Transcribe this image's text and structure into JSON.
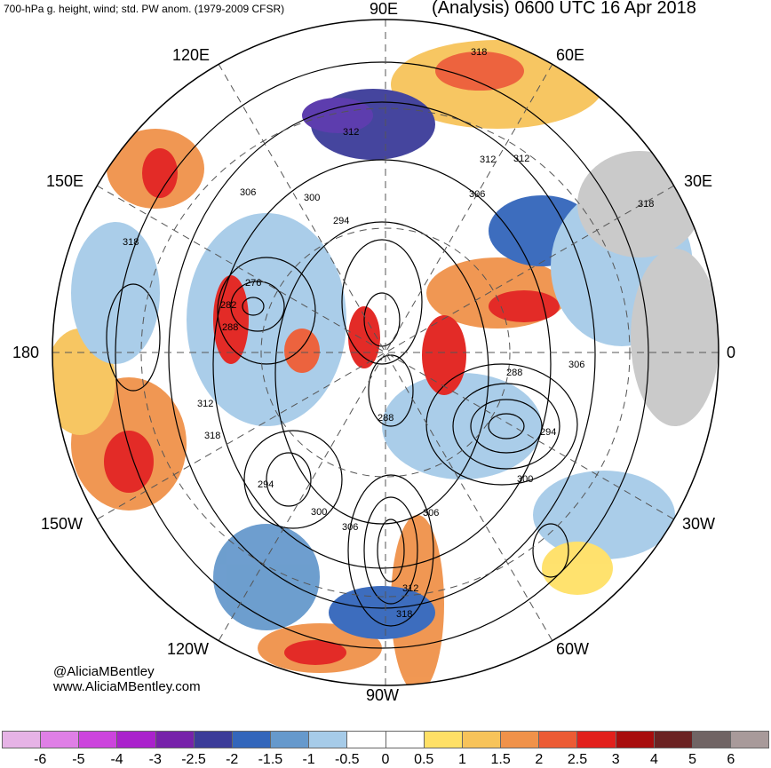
{
  "header": {
    "subtitle": "700-hPa g. height, wind; std. PW anom. (1979-2009 CFSR)",
    "title": "(Analysis) 0600 UTC 16 Apr 2018"
  },
  "longitude_labels": {
    "e90": "90E",
    "e120": "120E",
    "e60": "60E",
    "e150": "150E",
    "e30": "30E",
    "w180": "180",
    "zero": "0",
    "w150": "150W",
    "w30": "30W",
    "w120": "120W",
    "w60": "60W",
    "w90": "90W"
  },
  "contour_labels": [
    "318",
    "312",
    "312",
    "306",
    "300",
    "294",
    "276",
    "282",
    "288",
    "312",
    "318",
    "306",
    "318",
    "312",
    "288",
    "294",
    "300",
    "306",
    "312",
    "318",
    "300",
    "294",
    "306",
    "288",
    "306",
    "318"
  ],
  "credits": {
    "handle": "@AliciaMBentley",
    "site": "www.AliciaMBentley.com"
  },
  "colorbar": {
    "ticks": [
      "-6",
      "-5",
      "-4",
      "-3",
      "-2.5",
      "-2",
      "-1.5",
      "-1",
      "-0.5",
      "0",
      "0.5",
      "1",
      "1.5",
      "2",
      "2.5",
      "3",
      "4",
      "5",
      "6"
    ],
    "colors": [
      "#e6b3e6",
      "#df7fe6",
      "#cc44dd",
      "#aa22cc",
      "#7722aa",
      "#3c3c99",
      "#3366bb",
      "#6699cc",
      "#a6cbe8",
      "#ffffff",
      "#ffffff",
      "#ffe066",
      "#f7c35a",
      "#f0924a",
      "#ec5b34",
      "#e2201c",
      "#a80d0d",
      "#6b2222",
      "#706464",
      "#a89a9a"
    ]
  },
  "legend_colors": {
    "land_gray": "#c8c8c8",
    "contour": "#000000"
  }
}
